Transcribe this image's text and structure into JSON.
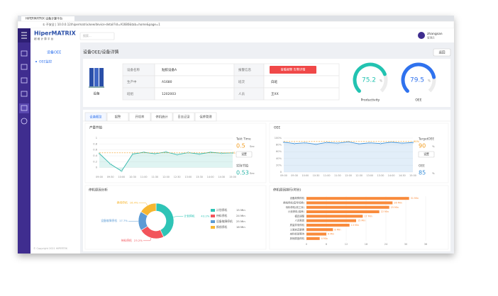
{
  "browser": {
    "tab": "HiPERMATRIX 设备计算平台",
    "url": "① 不安全 | 10.0.0.12/hipermatrix/oee/device-detail?id=A1680&tab=home&page=1",
    "user": "zhangsan",
    "role": "管理员"
  },
  "app": {
    "logo": "HiperMATRIX",
    "logo_sub": "超 维 计 算 平 台",
    "search": "搜索...",
    "menu": [
      "设备OEE",
      "OEE监控"
    ],
    "copyright": "© Copyright 2021 HIPERTEK"
  },
  "page": {
    "breadcrumb": "设备OEE/设备详情",
    "back": "返回"
  },
  "device": {
    "image_label": "设备",
    "rows": [
      [
        "设备名称",
        "贴胶设备A",
        "报警信息"
      ],
      [
        "生产中",
        "A1680",
        "班次",
        "白班"
      ],
      [
        "班组",
        "1202003",
        "人员",
        "王XX"
      ]
    ],
    "alarm_button": "查看报警 告警详情"
  },
  "gauges": [
    {
      "value": 75.2,
      "unit": "%",
      "label": "Productivity",
      "color": "#22c3b1",
      "lim": [
        0,
        100
      ]
    },
    {
      "value": 79.5,
      "unit": "%",
      "label": "OEE",
      "color": "#2f72ee",
      "lim": [
        0,
        100
      ]
    }
  ],
  "tabs": [
    "设备概览",
    "报警",
    "开机率",
    "停机统计",
    "日志记录",
    "保养管理"
  ],
  "chart_data": [
    {
      "type": "line",
      "title": "产量节拍",
      "categories": [
        "09:00",
        "09:30",
        "10:00",
        "10:30",
        "11:00",
        "11:30",
        "12:00",
        "12:30",
        "13:00",
        "13:30",
        "14:00",
        "14:30",
        "15:00"
      ],
      "values": [
        0.48,
        0.12,
        -0.12,
        0.46,
        0.52,
        0.47,
        0.53,
        0.44,
        0.51,
        0.46,
        0.52,
        0.49,
        0.5
      ],
      "color": "#2bb5a8",
      "ylim": [
        -0.2,
        1
      ],
      "yticks": [
        0,
        0.2,
        0.4,
        0.6,
        0.8,
        1
      ],
      "target": {
        "value": 0.5,
        "label": "0.5 Sec"
      },
      "side": [
        {
          "label": "Takt Time",
          "value": 0.5,
          "unit": "Sec",
          "color": "#f29b1d"
        },
        {
          "label": "实际节拍",
          "value": 0.53,
          "unit": "Sec",
          "color": "#2bb5a8"
        }
      ],
      "button": "设置"
    },
    {
      "type": "line",
      "title": "OEE",
      "categories": [
        "09:00",
        "09:30",
        "10:00",
        "10:30",
        "11:00",
        "11:30",
        "12:00",
        "12:30",
        "13:00",
        "13:30",
        "14:00",
        "14:30",
        "15:00"
      ],
      "values": [
        88,
        84,
        86,
        82,
        87,
        85,
        89,
        83,
        86,
        84,
        88,
        85,
        87
      ],
      "color": "#3a8fd8",
      "ylim": [
        0,
        100
      ],
      "yticks": [
        {
          "value": 0,
          "label": "0"
        },
        {
          "value": 20,
          "label": "20%"
        },
        {
          "value": 40,
          "label": "40%"
        },
        {
          "value": 60,
          "label": "60%"
        },
        {
          "value": 80,
          "label": "80%"
        },
        {
          "value": 100,
          "label": "100%"
        }
      ],
      "target": {
        "value": 90,
        "label": "90%"
      },
      "side": [
        {
          "label": "TargetOEE",
          "value": 90,
          "unit": "%",
          "color": "#f29b1d"
        },
        {
          "label": "OEE",
          "value": 85,
          "unit": "%",
          "color": "#3a8fd8"
        }
      ],
      "button": "设置"
    },
    {
      "type": "pie",
      "title": "停机原因分析",
      "categories": [
        "计划停机",
        "待料停机",
        "设备故障停机",
        "换线停机"
      ],
      "values": [
        43.2,
        23.2,
        17.7,
        16.4
      ],
      "value_labels": [
        "43.2%",
        "23.2%",
        "17.7%",
        "16.4%"
      ],
      "colors": [
        "#2ec4b6",
        "#f2545b",
        "#5b9bd5",
        "#f7b731"
      ],
      "minutes": [
        15,
        24,
        25,
        16
      ],
      "minutes_unit": "Min"
    },
    {
      "type": "hbar",
      "title": "停机原因排行(时长)",
      "categories": [
        "设备故障停机",
        "换线停机(型号切换)",
        "待料停机(前工序)",
        "计划停机(保养)",
        "模具调整",
        "人员离岗",
        "质量异常停机",
        "工装夹具更换",
        "来料检验等待",
        "其他原因停机"
      ],
      "values": [
        31,
        26,
        25,
        22,
        17,
        15,
        13,
        8,
        6,
        4
      ],
      "value_labels": [
        "31 Min",
        "26 Min",
        "25 Min",
        "22 Min",
        "17 Min",
        "15 Min",
        "13 Min",
        "8 Min",
        "6 Min",
        "4 Min"
      ],
      "color": "#f98b3c",
      "xlim": [
        0,
        36
      ],
      "xticks": [
        0,
        6,
        12,
        18,
        24,
        30,
        36
      ]
    }
  ]
}
